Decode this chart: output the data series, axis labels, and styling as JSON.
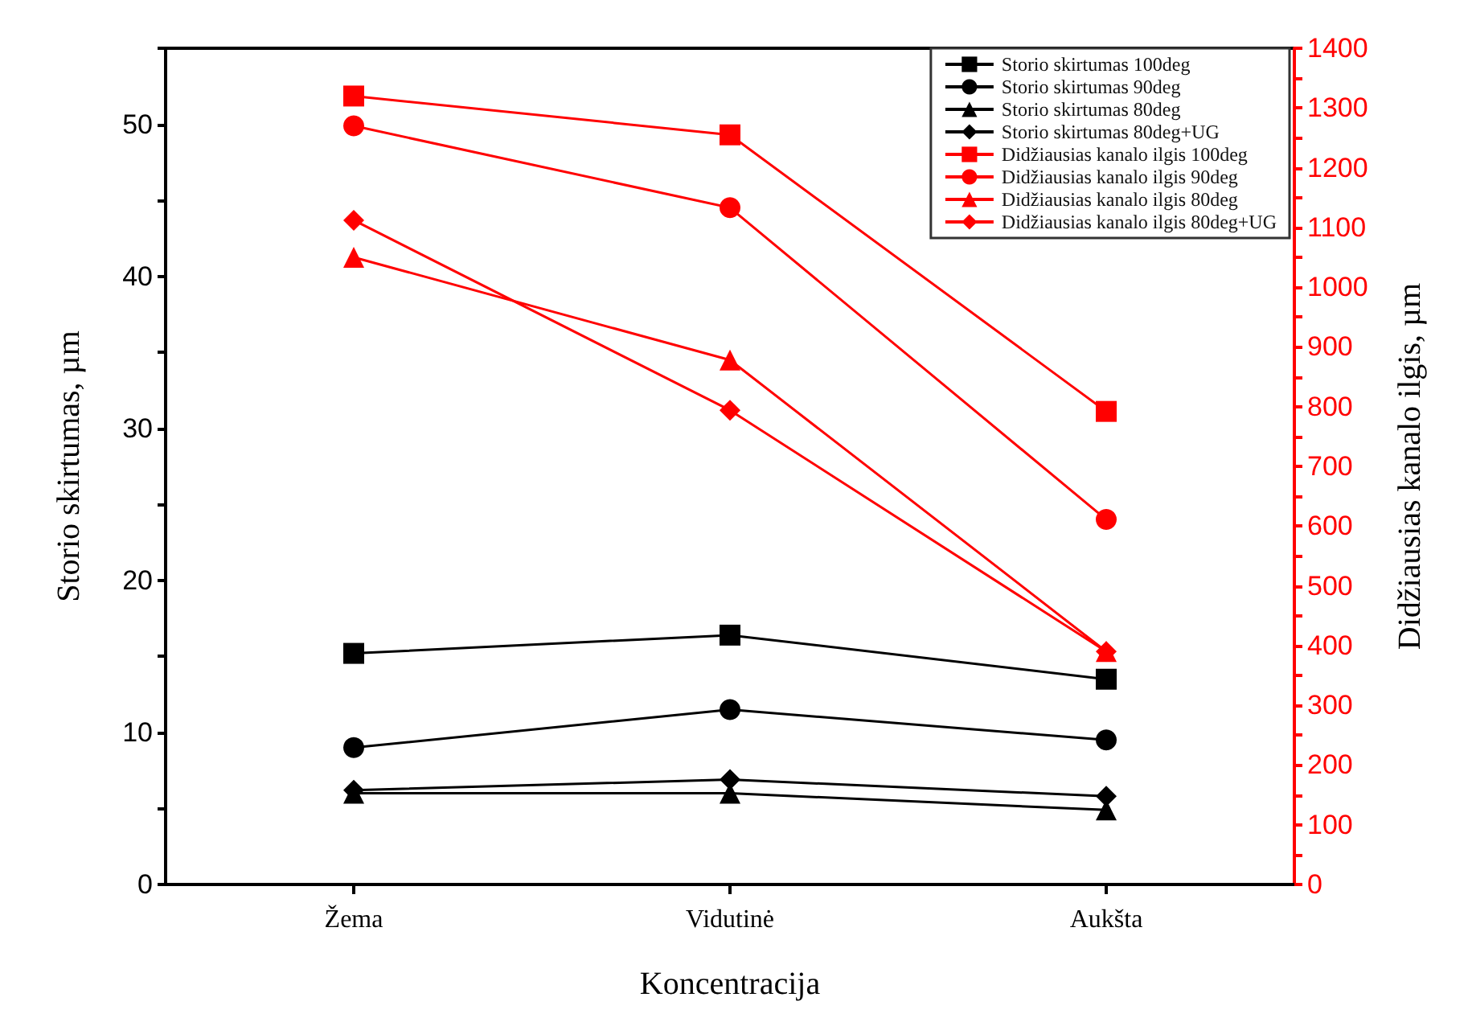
{
  "chart_data": {
    "type": "line",
    "xlabel": "Koncentracija",
    "ylabel": "Storio skirtumas, µm",
    "y2label": "Didžiausias kanalo ilgis, µm",
    "categories": [
      "Žema",
      "Vidutinė",
      "Aukšta"
    ],
    "ylim": [
      0,
      55
    ],
    "yticks": [
      0,
      10,
      20,
      30,
      40,
      50
    ],
    "y2lim": [
      0,
      1400
    ],
    "y2ticks": [
      0,
      100,
      200,
      300,
      400,
      500,
      600,
      700,
      800,
      900,
      1000,
      1100,
      1200,
      1300,
      1400
    ],
    "grid": false,
    "legend": "top right",
    "line_style": "solid",
    "series": [
      {
        "name": "Storio skirtumas 100deg",
        "color": "#000000",
        "marker": "square",
        "values": [
          15.2,
          16.4,
          13.5
        ]
      },
      {
        "name": "Storio skirtumas 90deg",
        "color": "#000000",
        "marker": "circle",
        "values": [
          9.0,
          11.5,
          9.5
        ]
      },
      {
        "name": "Storio skirtumas 80deg",
        "color": "#000000",
        "marker": "triangle",
        "values": [
          6.0,
          6.0,
          4.9
        ]
      },
      {
        "name": "Storio skirtumas 80deg+UG",
        "color": "#000000",
        "marker": "diamond",
        "values": [
          6.2,
          6.9,
          5.8
        ]
      },
      {
        "name": "Didžiausias kanalo ilgis 100deg",
        "color": "#ff0000",
        "marker": "square",
        "axis": "y2",
        "values": [
          1320,
          1255,
          792
        ]
      },
      {
        "name": "Didžiausias kanalo ilgis 90deg",
        "color": "#ff0000",
        "marker": "circle",
        "axis": "y2",
        "values": [
          1270,
          1133,
          611
        ]
      },
      {
        "name": "Didžiausias kanalo ilgis 80deg",
        "color": "#ff0000",
        "marker": "triangle",
        "axis": "y2",
        "values": [
          1050,
          878,
          390
        ]
      },
      {
        "name": "Didžiausias kanalo ilgis 80deg+UG",
        "color": "#ff0000",
        "marker": "diamond",
        "axis": "y2",
        "values": [
          1112,
          794,
          390
        ]
      }
    ]
  }
}
